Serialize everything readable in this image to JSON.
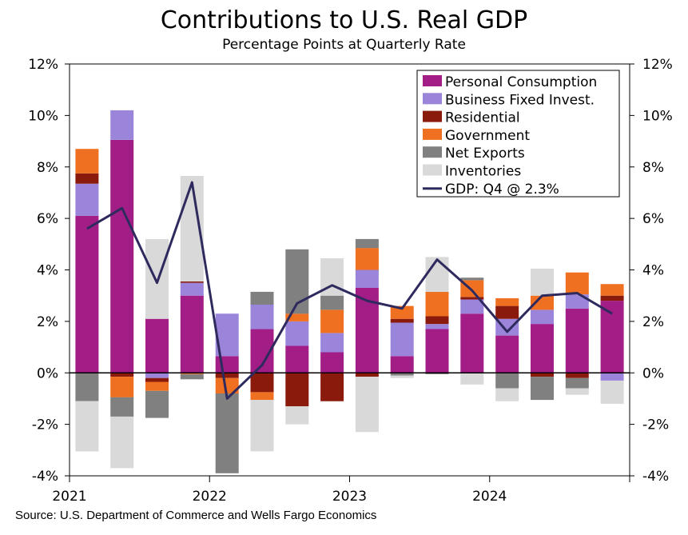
{
  "chart_data": {
    "type": "bar",
    "title": "Contributions to U.S. Real GDP",
    "subtitle": "Percentage Points at Quarterly Rate",
    "source": "Source: U.S. Department of Commerce and Wells Fargo Economics",
    "ylim": [
      -4,
      12
    ],
    "yticks": [
      "12%",
      "10%",
      "8%",
      "6%",
      "4%",
      "2%",
      "0%",
      "-2%",
      "-4%"
    ],
    "ytick_values": [
      12,
      10,
      8,
      6,
      4,
      2,
      0,
      -2,
      -4
    ],
    "year_labels": [
      {
        "label": "2021",
        "quarter_index": 0
      },
      {
        "label": "2022",
        "quarter_index": 4
      },
      {
        "label": "2023",
        "quarter_index": 8
      },
      {
        "label": "2024",
        "quarter_index": 12
      }
    ],
    "quarters": [
      "2021Q1",
      "2021Q2",
      "2021Q3",
      "2021Q4",
      "2022Q1",
      "2022Q2",
      "2022Q3",
      "2022Q4",
      "2023Q1",
      "2023Q2",
      "2023Q3",
      "2023Q4",
      "2024Q1",
      "2024Q2",
      "2024Q3",
      "2024Q4"
    ],
    "series": [
      {
        "name": "Personal Consumption",
        "color": "#A21D86",
        "values": [
          6.1,
          9.05,
          2.1,
          3.0,
          0.65,
          1.7,
          1.05,
          0.8,
          3.3,
          0.65,
          1.7,
          2.3,
          1.45,
          1.9,
          2.5,
          2.8
        ]
      },
      {
        "name": "Business Fixed Invest.",
        "color": "#9B85DB",
        "values": [
          1.25,
          1.15,
          -0.2,
          0.5,
          1.65,
          0.95,
          0.95,
          0.75,
          0.7,
          1.3,
          0.2,
          0.55,
          0.65,
          0.55,
          0.55,
          -0.3
        ]
      },
      {
        "name": "Residential",
        "color": "#8A1A0C",
        "values": [
          0.4,
          -0.15,
          -0.15,
          0.05,
          -0.2,
          -0.75,
          -1.3,
          -1.1,
          -0.15,
          0.15,
          0.3,
          0.1,
          0.5,
          -0.15,
          -0.2,
          0.2
        ]
      },
      {
        "name": "Government",
        "color": "#F07021",
        "values": [
          0.95,
          -0.8,
          -0.35,
          -0.05,
          -0.6,
          -0.3,
          0.3,
          0.9,
          0.85,
          0.5,
          0.95,
          0.65,
          0.3,
          0.55,
          0.85,
          0.45
        ]
      },
      {
        "name": "Net Exports",
        "color": "#808080",
        "values": [
          -1.1,
          -0.75,
          -1.05,
          -0.2,
          -3.1,
          0.5,
          2.5,
          0.55,
          0.35,
          -0.1,
          -0.05,
          0.1,
          -0.6,
          -0.9,
          -0.4,
          0.0
        ]
      },
      {
        "name": "Inventories",
        "color": "#D9D9D9",
        "values": [
          -1.95,
          -2.0,
          3.1,
          4.1,
          0.0,
          -2.0,
          -0.7,
          1.45,
          -2.15,
          -0.1,
          1.35,
          -0.45,
          -0.5,
          1.05,
          -0.25,
          -0.9
        ]
      }
    ],
    "line": {
      "name": "GDP: Q4 @ 2.3%",
      "color": "#2E2A5E",
      "values": [
        5.6,
        6.4,
        3.5,
        7.4,
        -1.0,
        0.3,
        2.7,
        3.4,
        2.8,
        2.5,
        4.4,
        3.2,
        1.6,
        3.0,
        3.1,
        2.3
      ]
    }
  }
}
